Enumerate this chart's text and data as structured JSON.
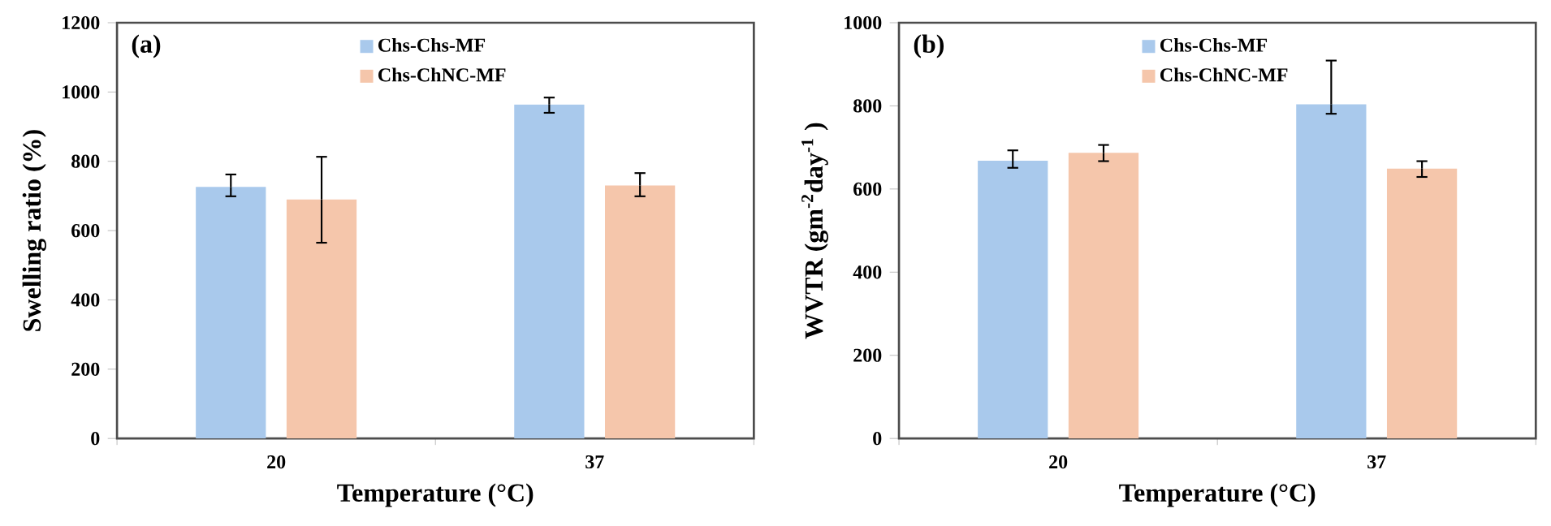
{
  "chart_data": [
    {
      "type": "bar",
      "annotations": [
        "(a)"
      ],
      "xlabel": "Temperature (°C)",
      "ylabel": "Swelling ratio (%)",
      "categories": [
        "20",
        "37"
      ],
      "ylim": [
        0,
        1200
      ],
      "yticks": [
        0,
        200,
        400,
        600,
        800,
        1000,
        1200
      ],
      "legend": "top",
      "series": [
        {
          "name": "Chs-Chs-MF",
          "color": "#a9c9ec",
          "values": [
            726,
            964
          ],
          "errors": [
            [
              699,
              762
            ],
            [
              940,
              984
            ]
          ]
        },
        {
          "name": "Chs-ChNC-MF",
          "color": "#f5c6ab",
          "values": [
            690,
            730
          ],
          "errors": [
            [
              565,
              813
            ],
            [
              699,
              766
            ]
          ]
        }
      ]
    },
    {
      "type": "bar",
      "annotations": [
        "(b)"
      ],
      "xlabel": "Temperature (°C)",
      "ylabel": "WVTR (gm$^{-2}$day$^{-1}$ )",
      "categories": [
        "20",
        "37"
      ],
      "ylim": [
        0,
        1000
      ],
      "yticks": [
        0,
        200,
        400,
        600,
        800,
        1000
      ],
      "legend": "top",
      "series": [
        {
          "name": "Chs-Chs-MF",
          "color": "#a9c9ec",
          "values": [
            668,
            804
          ],
          "errors": [
            [
              651,
              693
            ],
            [
              781,
              909
            ]
          ]
        },
        {
          "name": "Chs-ChNC-MF",
          "color": "#f5c6ab",
          "values": [
            687,
            649
          ],
          "errors": [
            [
              667,
              706
            ],
            [
              629,
              667
            ]
          ]
        }
      ]
    }
  ]
}
